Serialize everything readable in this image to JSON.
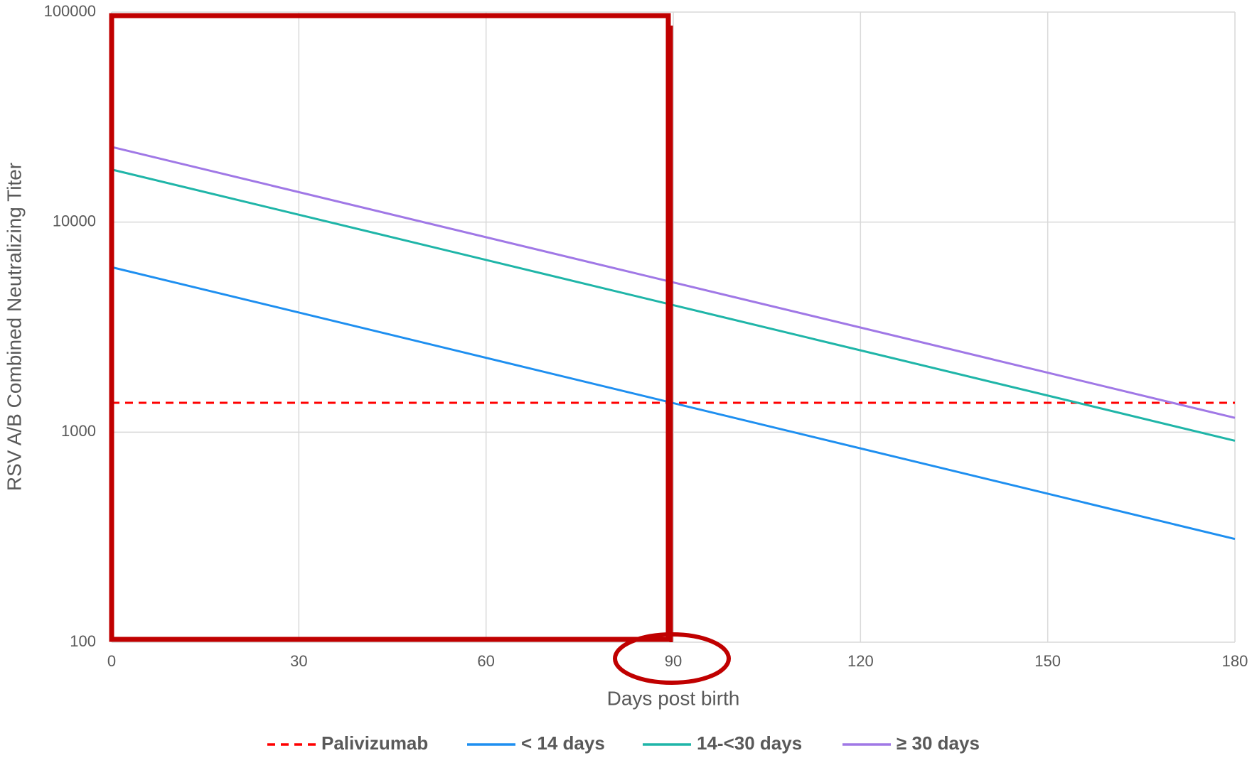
{
  "chart_data": {
    "type": "line",
    "x_label": "Days post birth",
    "y_label": "RSV A/B Combined Neutralizing Titer",
    "x": [
      0,
      180
    ],
    "series": [
      {
        "name": "Palivizumab",
        "color": "#ff0000",
        "style": "dashed",
        "values": [
          1380,
          1380
        ]
      },
      {
        "name": "< 14 days",
        "color": "#1e8ff0",
        "style": "solid",
        "values": [
          6100,
          310
        ]
      },
      {
        "name": "14-<30 days",
        "color": "#1fb5a8",
        "style": "solid",
        "values": [
          17800,
          910
        ]
      },
      {
        "name": "≥ 30 days",
        "color": "#a078e6",
        "style": "solid",
        "values": [
          22800,
          1170
        ]
      }
    ],
    "xlim": [
      0,
      180
    ],
    "xticks": [
      0,
      30,
      60,
      90,
      120,
      150,
      180
    ],
    "ylim": [
      100,
      100000
    ],
    "yticks": [
      100,
      1000,
      10000,
      100000
    ],
    "y_scale": "log",
    "grid": true,
    "legend": "bottom"
  }
}
